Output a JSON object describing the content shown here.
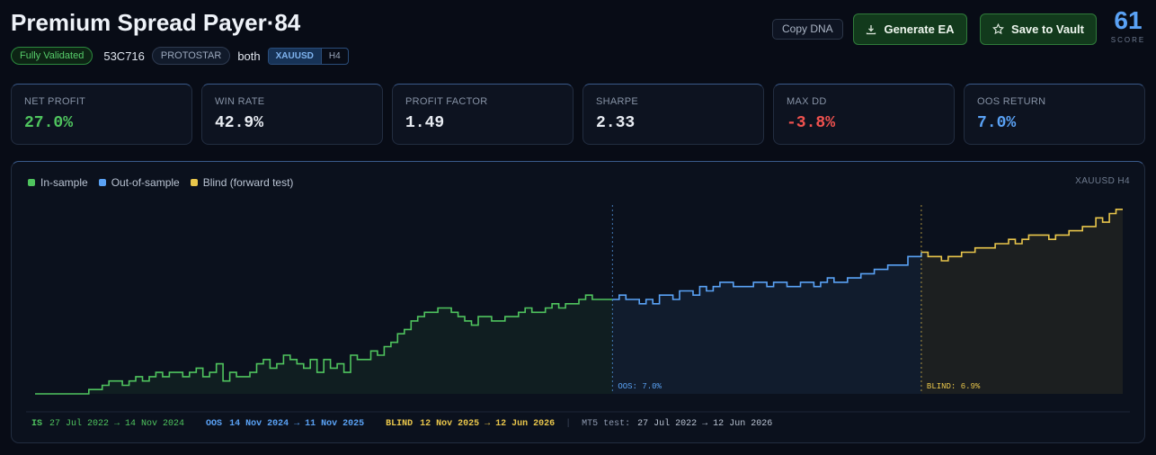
{
  "header": {
    "title": "Premium Spread Payer·84",
    "status_badge": "Fully Validated",
    "dna_code": "53C716",
    "tier_badge": "PROTOSTAR",
    "direction": "both",
    "symbol": "XAUUSD",
    "timeframe": "H4",
    "copy_dna_label": "Copy DNA",
    "generate_label": "Generate EA",
    "save_label": "Save to Vault",
    "score_value": "61",
    "score_label": "SCORE"
  },
  "metrics": [
    {
      "label": "NET PROFIT",
      "value": "27.0%",
      "color": "#4fc45e"
    },
    {
      "label": "WIN RATE",
      "value": "42.9%",
      "color": "#e8ecf2"
    },
    {
      "label": "PROFIT FACTOR",
      "value": "1.49",
      "color": "#e8ecf2"
    },
    {
      "label": "SHARPE",
      "value": "2.33",
      "color": "#e8ecf2"
    },
    {
      "label": "MAX DD",
      "value": "-3.8%",
      "color": "#f0524f"
    },
    {
      "label": "OOS RETURN",
      "value": "7.0%",
      "color": "#5aa2f5"
    }
  ],
  "chart": {
    "legend": [
      {
        "label": "In-sample",
        "color": "#4fc45e"
      },
      {
        "label": "Out-of-sample",
        "color": "#5aa2f5"
      },
      {
        "label": "Blind (forward test)",
        "color": "#e9c64b"
      }
    ],
    "tag": "XAUUSD  H4",
    "oos_marker": "OOS: 7.0%",
    "blind_marker": "BLIND: 6.9%"
  },
  "footer": {
    "is_key": "IS",
    "is_range": "27 Jul 2022 → 14 Nov 2024",
    "oos_key": "OOS",
    "oos_range": "14 Nov 2024 → 11 Nov 2025",
    "blind_key": "BLIND",
    "blind_range": "12 Nov 2025 → 12 Jun 2026",
    "mt5_key": "MT5 test:",
    "mt5_range": "27 Jul 2022 → 12 Jun 2026"
  },
  "chart_data": {
    "type": "line",
    "title": "",
    "xlabel": "",
    "ylabel": "",
    "series": [
      {
        "name": "In-sample",
        "color": "#4fc45e",
        "values": [
          0,
          0,
          0,
          0,
          0,
          0,
          0,
          0,
          1,
          1,
          2,
          3,
          3,
          2,
          3,
          4,
          3,
          4,
          5,
          4,
          5,
          5,
          4,
          5,
          6,
          4,
          5,
          7,
          3,
          5,
          4,
          4,
          5,
          7,
          8,
          6,
          7,
          9,
          8,
          7,
          6,
          8,
          5,
          8,
          6,
          7,
          5,
          9,
          8,
          8,
          10,
          9,
          11,
          12,
          14,
          15,
          17,
          18,
          19,
          19,
          20,
          20,
          19,
          18,
          17,
          16,
          18,
          18,
          17,
          17,
          18,
          18,
          19,
          20,
          19,
          19,
          20,
          21,
          20,
          21,
          21,
          22,
          23,
          22,
          22,
          22,
          22
        ]
      },
      {
        "name": "Out-of-sample",
        "values": [
          22,
          23,
          22,
          22,
          21,
          22,
          21,
          23,
          23,
          22,
          24,
          24,
          23,
          25,
          24,
          25,
          26,
          26,
          25,
          25,
          25,
          26,
          26,
          25,
          26,
          26,
          25,
          25,
          26,
          26,
          25,
          26,
          27,
          26,
          26,
          27,
          27,
          28,
          28,
          29,
          29,
          30,
          30,
          30,
          32,
          32,
          33
        ]
      },
      {
        "name": "Blind (forward test)",
        "values": [
          33,
          32,
          32,
          31,
          32,
          32,
          33,
          33,
          34,
          34,
          34,
          35,
          35,
          36,
          35,
          36,
          37,
          37,
          37,
          36,
          37,
          37,
          38,
          38,
          39,
          39,
          41,
          40,
          42,
          43,
          43
        ]
      }
    ],
    "ylim": [
      0,
      44
    ],
    "oos_return": "7.0%",
    "blind_return": "6.9%"
  }
}
